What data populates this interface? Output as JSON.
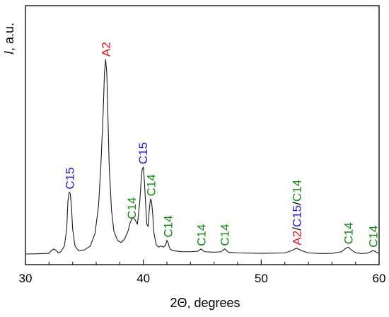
{
  "chart_data": {
    "type": "line",
    "xlabel": "2Θ, degrees",
    "ylabel_italic": "I",
    "ylabel_rest": ", a.u.",
    "xlim": [
      30,
      60
    ],
    "xticks": [
      30,
      40,
      50,
      60
    ],
    "xtick_labels": [
      "30",
      "40",
      "50",
      "60"
    ],
    "ylim": [
      0,
      110
    ],
    "grid": false,
    "legend": "none",
    "colors": {
      "A2": "#e8141c",
      "C15": "#1c1ce0",
      "C14": "#128a12",
      "line": "#1a1a1a"
    },
    "series": [
      {
        "x": [
          30.0,
          31.0,
          32.0,
          32.2,
          32.4,
          32.6,
          32.8,
          33.0,
          33.3,
          33.5,
          33.6,
          33.7,
          33.8,
          33.9,
          34.0,
          34.2,
          34.5,
          35.0,
          35.5,
          35.9,
          36.2,
          36.4,
          36.6,
          36.7,
          36.8,
          36.9,
          37.0,
          37.1,
          37.3,
          37.5,
          37.8,
          38.1,
          38.4,
          38.7,
          38.9,
          39.1,
          39.3,
          39.5,
          39.7,
          39.8,
          39.9,
          40.0,
          40.1,
          40.2,
          40.3,
          40.4,
          40.5,
          40.6,
          40.7,
          40.8,
          40.9,
          41.1,
          41.3,
          41.5,
          41.7,
          41.9,
          42.0,
          42.1,
          42.2,
          42.3,
          42.5,
          42.8,
          43.2,
          44.0,
          44.6,
          44.9,
          45.2,
          46.0,
          46.6,
          46.9,
          47.2,
          48.0,
          50.0,
          52.0,
          52.6,
          53.0,
          53.4,
          54.0,
          55.0,
          56.0,
          56.8,
          57.2,
          57.4,
          57.6,
          58.0,
          58.5,
          59.0,
          59.3,
          59.5,
          59.7,
          60.0
        ],
        "y": [
          1.0,
          1.1,
          1.3,
          2.5,
          3.2,
          2.6,
          1.5,
          2.0,
          4.5,
          12.0,
          24.0,
          28.0,
          27.5,
          22.0,
          12.0,
          4.5,
          2.5,
          2.8,
          4.5,
          10.0,
          22.0,
          40.0,
          64.0,
          80.0,
          86.0,
          80.0,
          60.0,
          40.0,
          20.0,
          11.0,
          7.0,
          6.0,
          7.5,
          11.0,
          15.0,
          17.0,
          16.0,
          14.0,
          24.0,
          32.0,
          38.0,
          39.0,
          32.0,
          22.0,
          14.0,
          13.0,
          20.0,
          25.0,
          24.0,
          18.0,
          10.0,
          5.0,
          4.0,
          4.5,
          4.0,
          5.0,
          7.0,
          6.0,
          4.0,
          3.0,
          2.5,
          2.3,
          2.0,
          2.0,
          2.2,
          3.2,
          2.0,
          1.8,
          2.0,
          3.3,
          1.8,
          1.5,
          1.3,
          1.5,
          2.5,
          3.6,
          2.5,
          1.5,
          1.2,
          1.3,
          2.0,
          3.6,
          4.0,
          3.0,
          1.6,
          1.2,
          1.4,
          2.0,
          2.6,
          2.0,
          1.3
        ]
      }
    ],
    "annotations": [
      {
        "x": 33.75,
        "y": 28.0,
        "parts": [
          {
            "text": "C15",
            "phase": "C15"
          }
        ]
      },
      {
        "x": 36.8,
        "y": 86.0,
        "parts": [
          {
            "text": "A2",
            "phase": "A2"
          }
        ]
      },
      {
        "x": 39.0,
        "y": 15.0,
        "parts": [
          {
            "text": "C14",
            "phase": "C14"
          }
        ]
      },
      {
        "x": 39.95,
        "y": 39.0,
        "parts": [
          {
            "text": "C15",
            "phase": "C15"
          }
        ]
      },
      {
        "x": 40.65,
        "y": 25.0,
        "parts": [
          {
            "text": "C14",
            "phase": "C14"
          }
        ]
      },
      {
        "x": 42.1,
        "y": 7.0,
        "parts": [
          {
            "text": "C14",
            "phase": "C14"
          }
        ]
      },
      {
        "x": 44.9,
        "y": 3.2,
        "parts": [
          {
            "text": "C14",
            "phase": "C14"
          }
        ]
      },
      {
        "x": 46.9,
        "y": 3.3,
        "parts": [
          {
            "text": "C14",
            "phase": "C14"
          }
        ]
      },
      {
        "x": 53.0,
        "y": 3.6,
        "parts": [
          {
            "text": "A2",
            "phase": "A2"
          },
          {
            "text": "/",
            "phase": "slash"
          },
          {
            "text": "C15",
            "phase": "C15"
          },
          {
            "text": "/",
            "phase": "slash"
          },
          {
            "text": "C14",
            "phase": "C14"
          }
        ]
      },
      {
        "x": 57.4,
        "y": 4.0,
        "parts": [
          {
            "text": "C14",
            "phase": "C14"
          }
        ]
      },
      {
        "x": 59.5,
        "y": 2.6,
        "parts": [
          {
            "text": "C14",
            "phase": "C14"
          }
        ]
      }
    ]
  }
}
